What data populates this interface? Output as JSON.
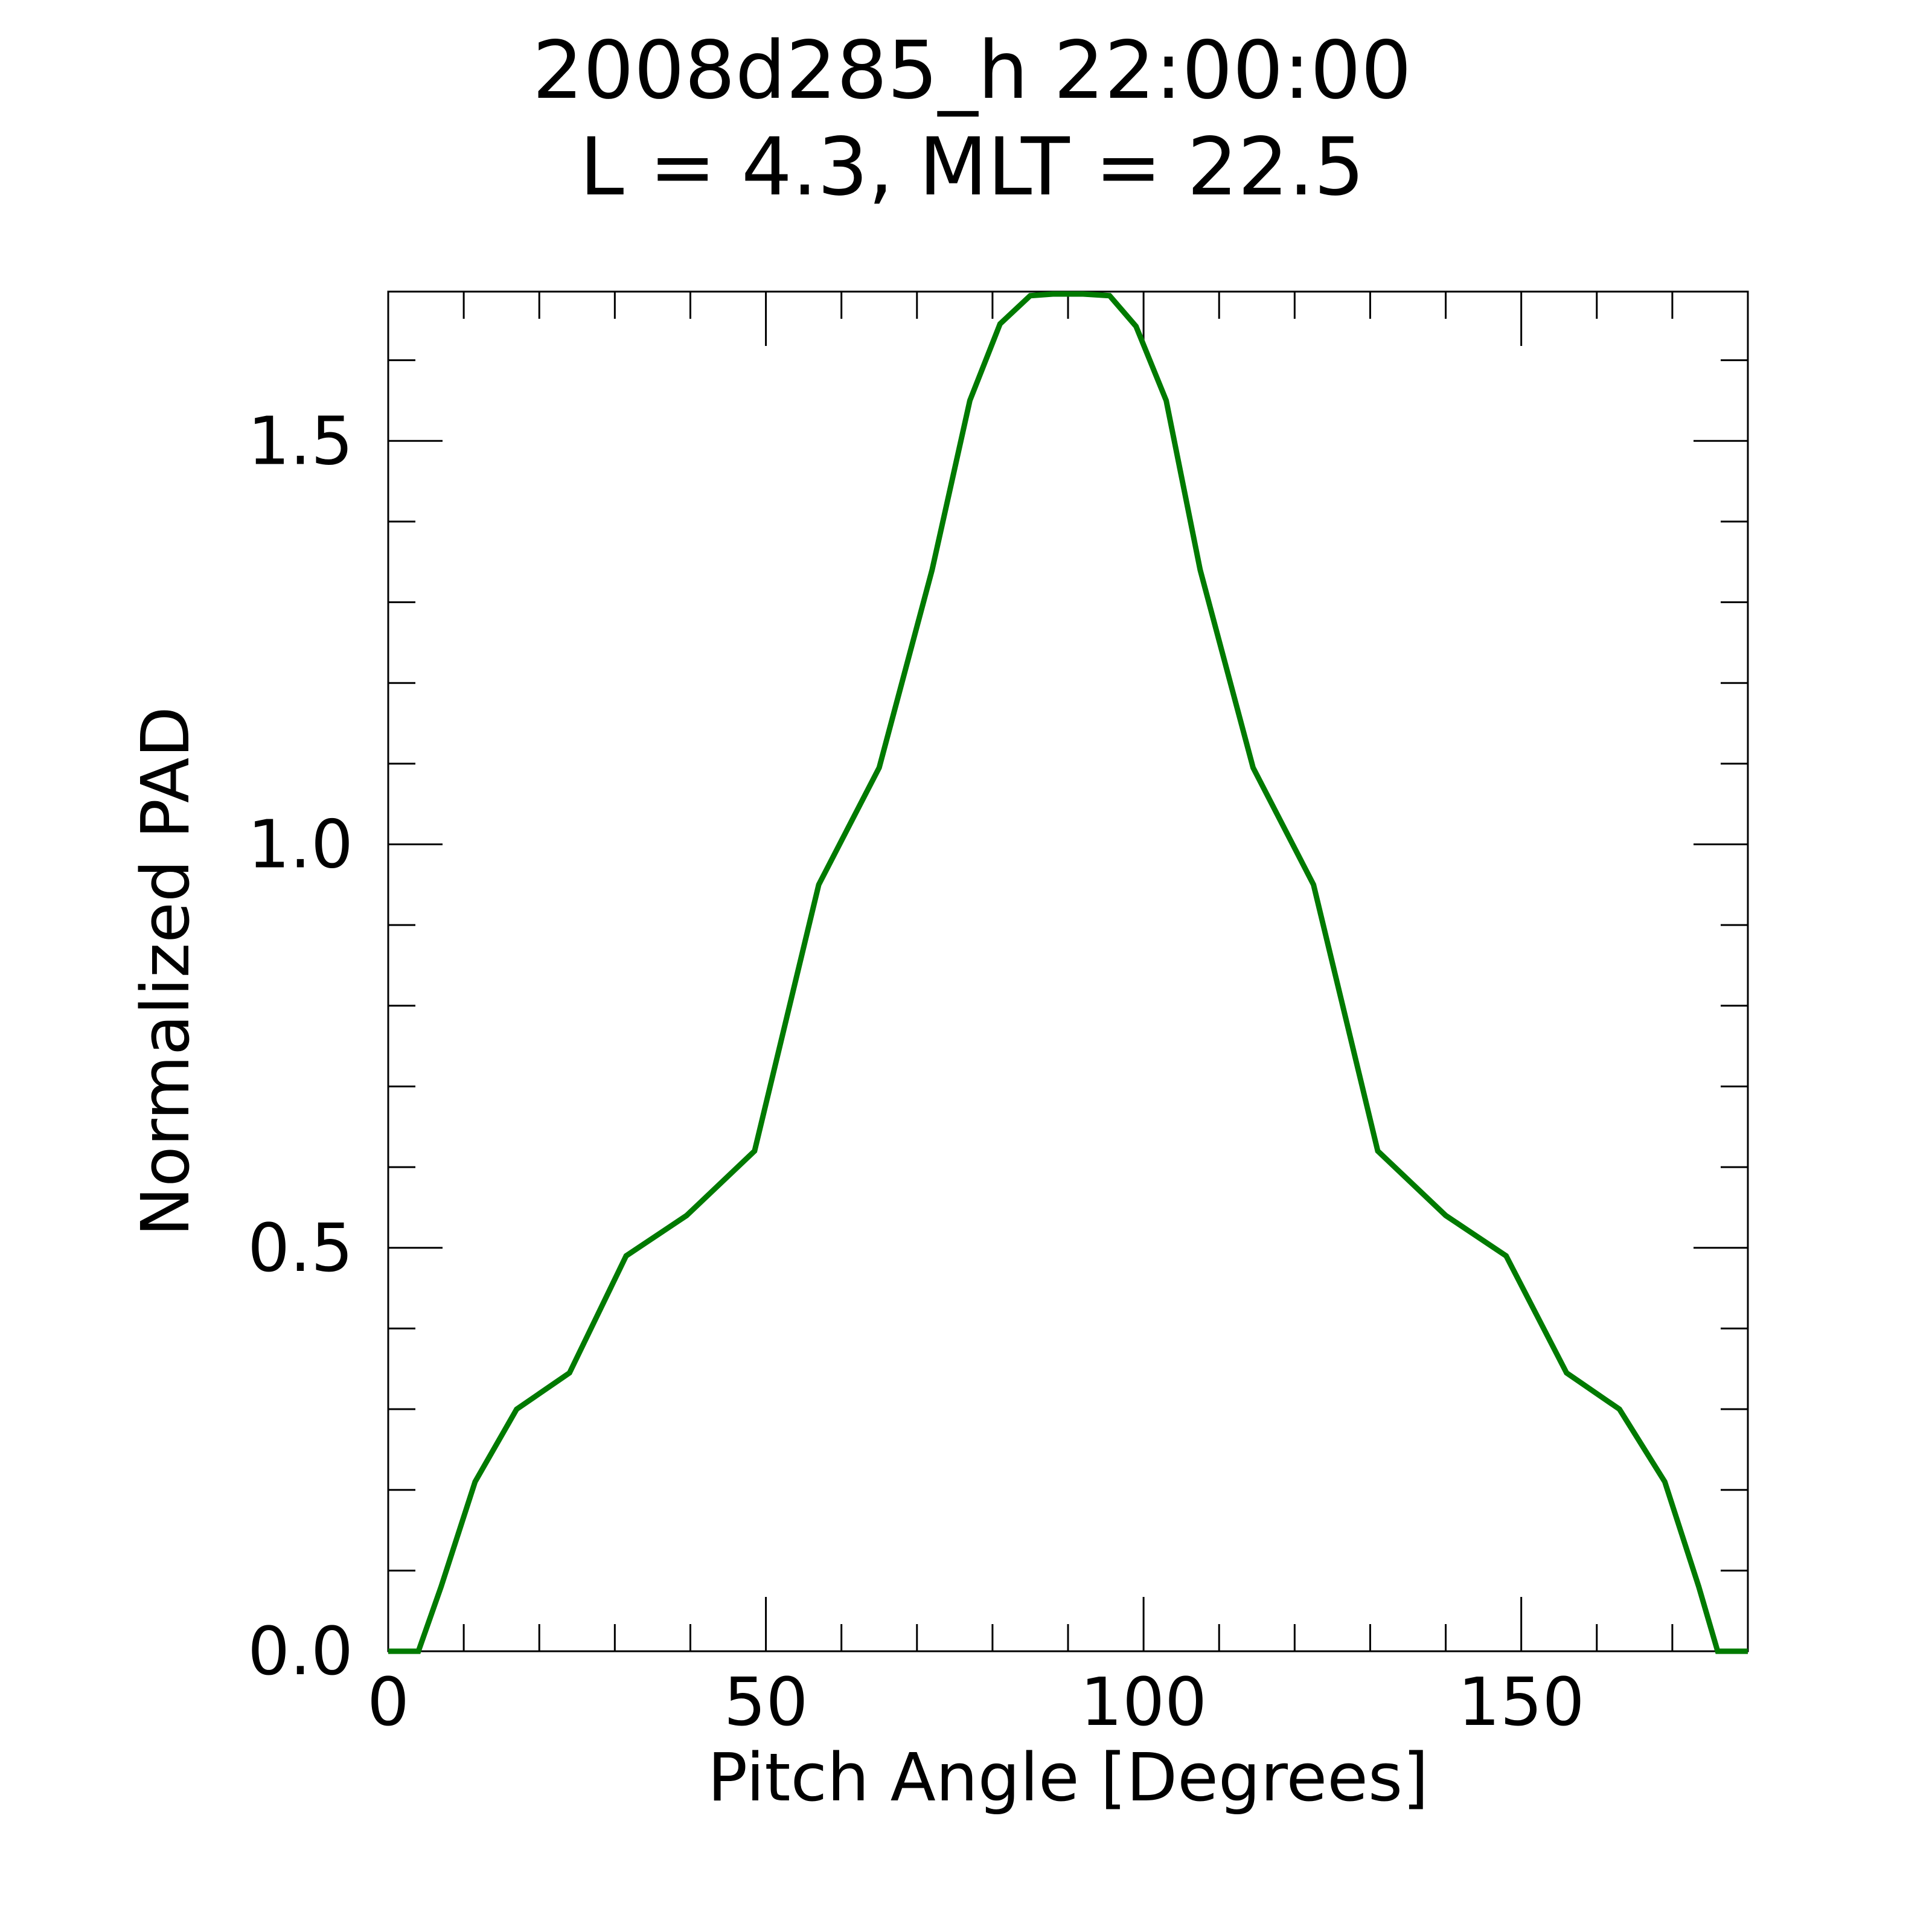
{
  "chart_data": {
    "type": "line",
    "title_lines": [
      "2008d285_h  22:00:00",
      "L = 4.3, MLT = 22.5"
    ],
    "xlabel": "Pitch Angle [Degrees]",
    "ylabel": "Normalized PAD",
    "xlim": [
      0,
      180
    ],
    "ylim": [
      0,
      1.685
    ],
    "x_major_ticks": [
      0,
      50,
      100,
      150
    ],
    "x_tick_labels": [
      "0",
      "50",
      "100",
      "150"
    ],
    "x_minor_step": 10,
    "y_major_ticks": [
      0,
      0.5,
      1.0,
      1.5
    ],
    "y_tick_labels": [
      "0.0",
      "0.5",
      "1.0",
      "1.5"
    ],
    "y_minor_step": 0.1,
    "grid": false,
    "line_color": "#007a00",
    "series": [
      {
        "x": [
          0,
          4,
          7,
          11.5,
          17,
          24,
          31.5,
          39.5,
          48.5,
          57,
          65,
          72,
          77,
          81,
          85,
          88,
          92,
          95.5,
          99,
          103,
          107.5,
          114.5,
          122.5,
          131,
          140,
          148,
          156,
          163,
          169,
          173.5,
          176,
          180
        ],
        "y": [
          0.0,
          0.0,
          0.08,
          0.21,
          0.3,
          0.345,
          0.49,
          0.54,
          0.62,
          0.95,
          1.095,
          1.34,
          1.55,
          1.645,
          1.68,
          1.682,
          1.682,
          1.68,
          1.642,
          1.55,
          1.34,
          1.095,
          0.95,
          0.62,
          0.54,
          0.49,
          0.345,
          0.3,
          0.21,
          0.08,
          0.0,
          0.0
        ]
      }
    ]
  }
}
